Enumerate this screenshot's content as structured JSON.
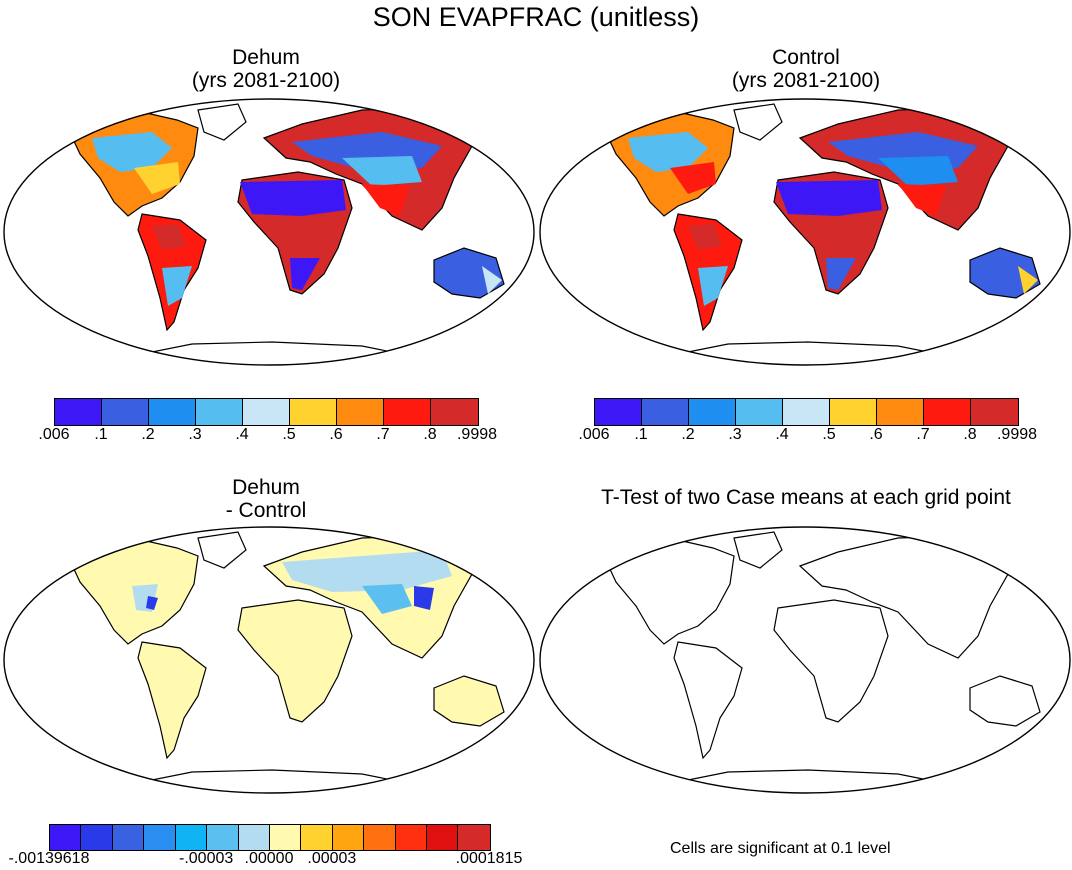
{
  "title": "SON EVAPFRAC (unitless)",
  "panels": [
    {
      "id": "dehum",
      "title_line1": "Dehum",
      "title_line2": "(yrs 2081-2100)"
    },
    {
      "id": "control",
      "title_line1": "Control",
      "title_line2": "(yrs 2081-2100)"
    },
    {
      "id": "diff",
      "title_line1": "Dehum",
      "title_line2": "- Control"
    },
    {
      "id": "ttest",
      "title_line1": "T-Test of two Case means at each grid point",
      "title_line2": ""
    }
  ],
  "colorbar_main": {
    "colors": [
      "#3d17f5",
      "#3a5fe0",
      "#1e8ff0",
      "#55bdf0",
      "#c8e6f5",
      "#ffd230",
      "#ff8a10",
      "#ff1a10",
      "#d42a2a"
    ],
    "labels": [
      ".006",
      ".1",
      ".2",
      ".3",
      ".4",
      ".5",
      ".6",
      ".7",
      ".8",
      ".9998"
    ]
  },
  "colorbar_diff": {
    "colors": [
      "#3d17f5",
      "#2a3ae8",
      "#3a62e0",
      "#2a8ef0",
      "#10b4f5",
      "#5bc0f0",
      "#b4dcf0",
      "#fffab0",
      "#ffd230",
      "#ffa510",
      "#ff7010",
      "#ff3010",
      "#e01010",
      "#d42a2a"
    ],
    "labels": [
      "-.00139618",
      "-.00003",
      ".00000",
      ".00003",
      ".0001815"
    ]
  },
  "note": "Cells are significant at 0.1 level"
}
